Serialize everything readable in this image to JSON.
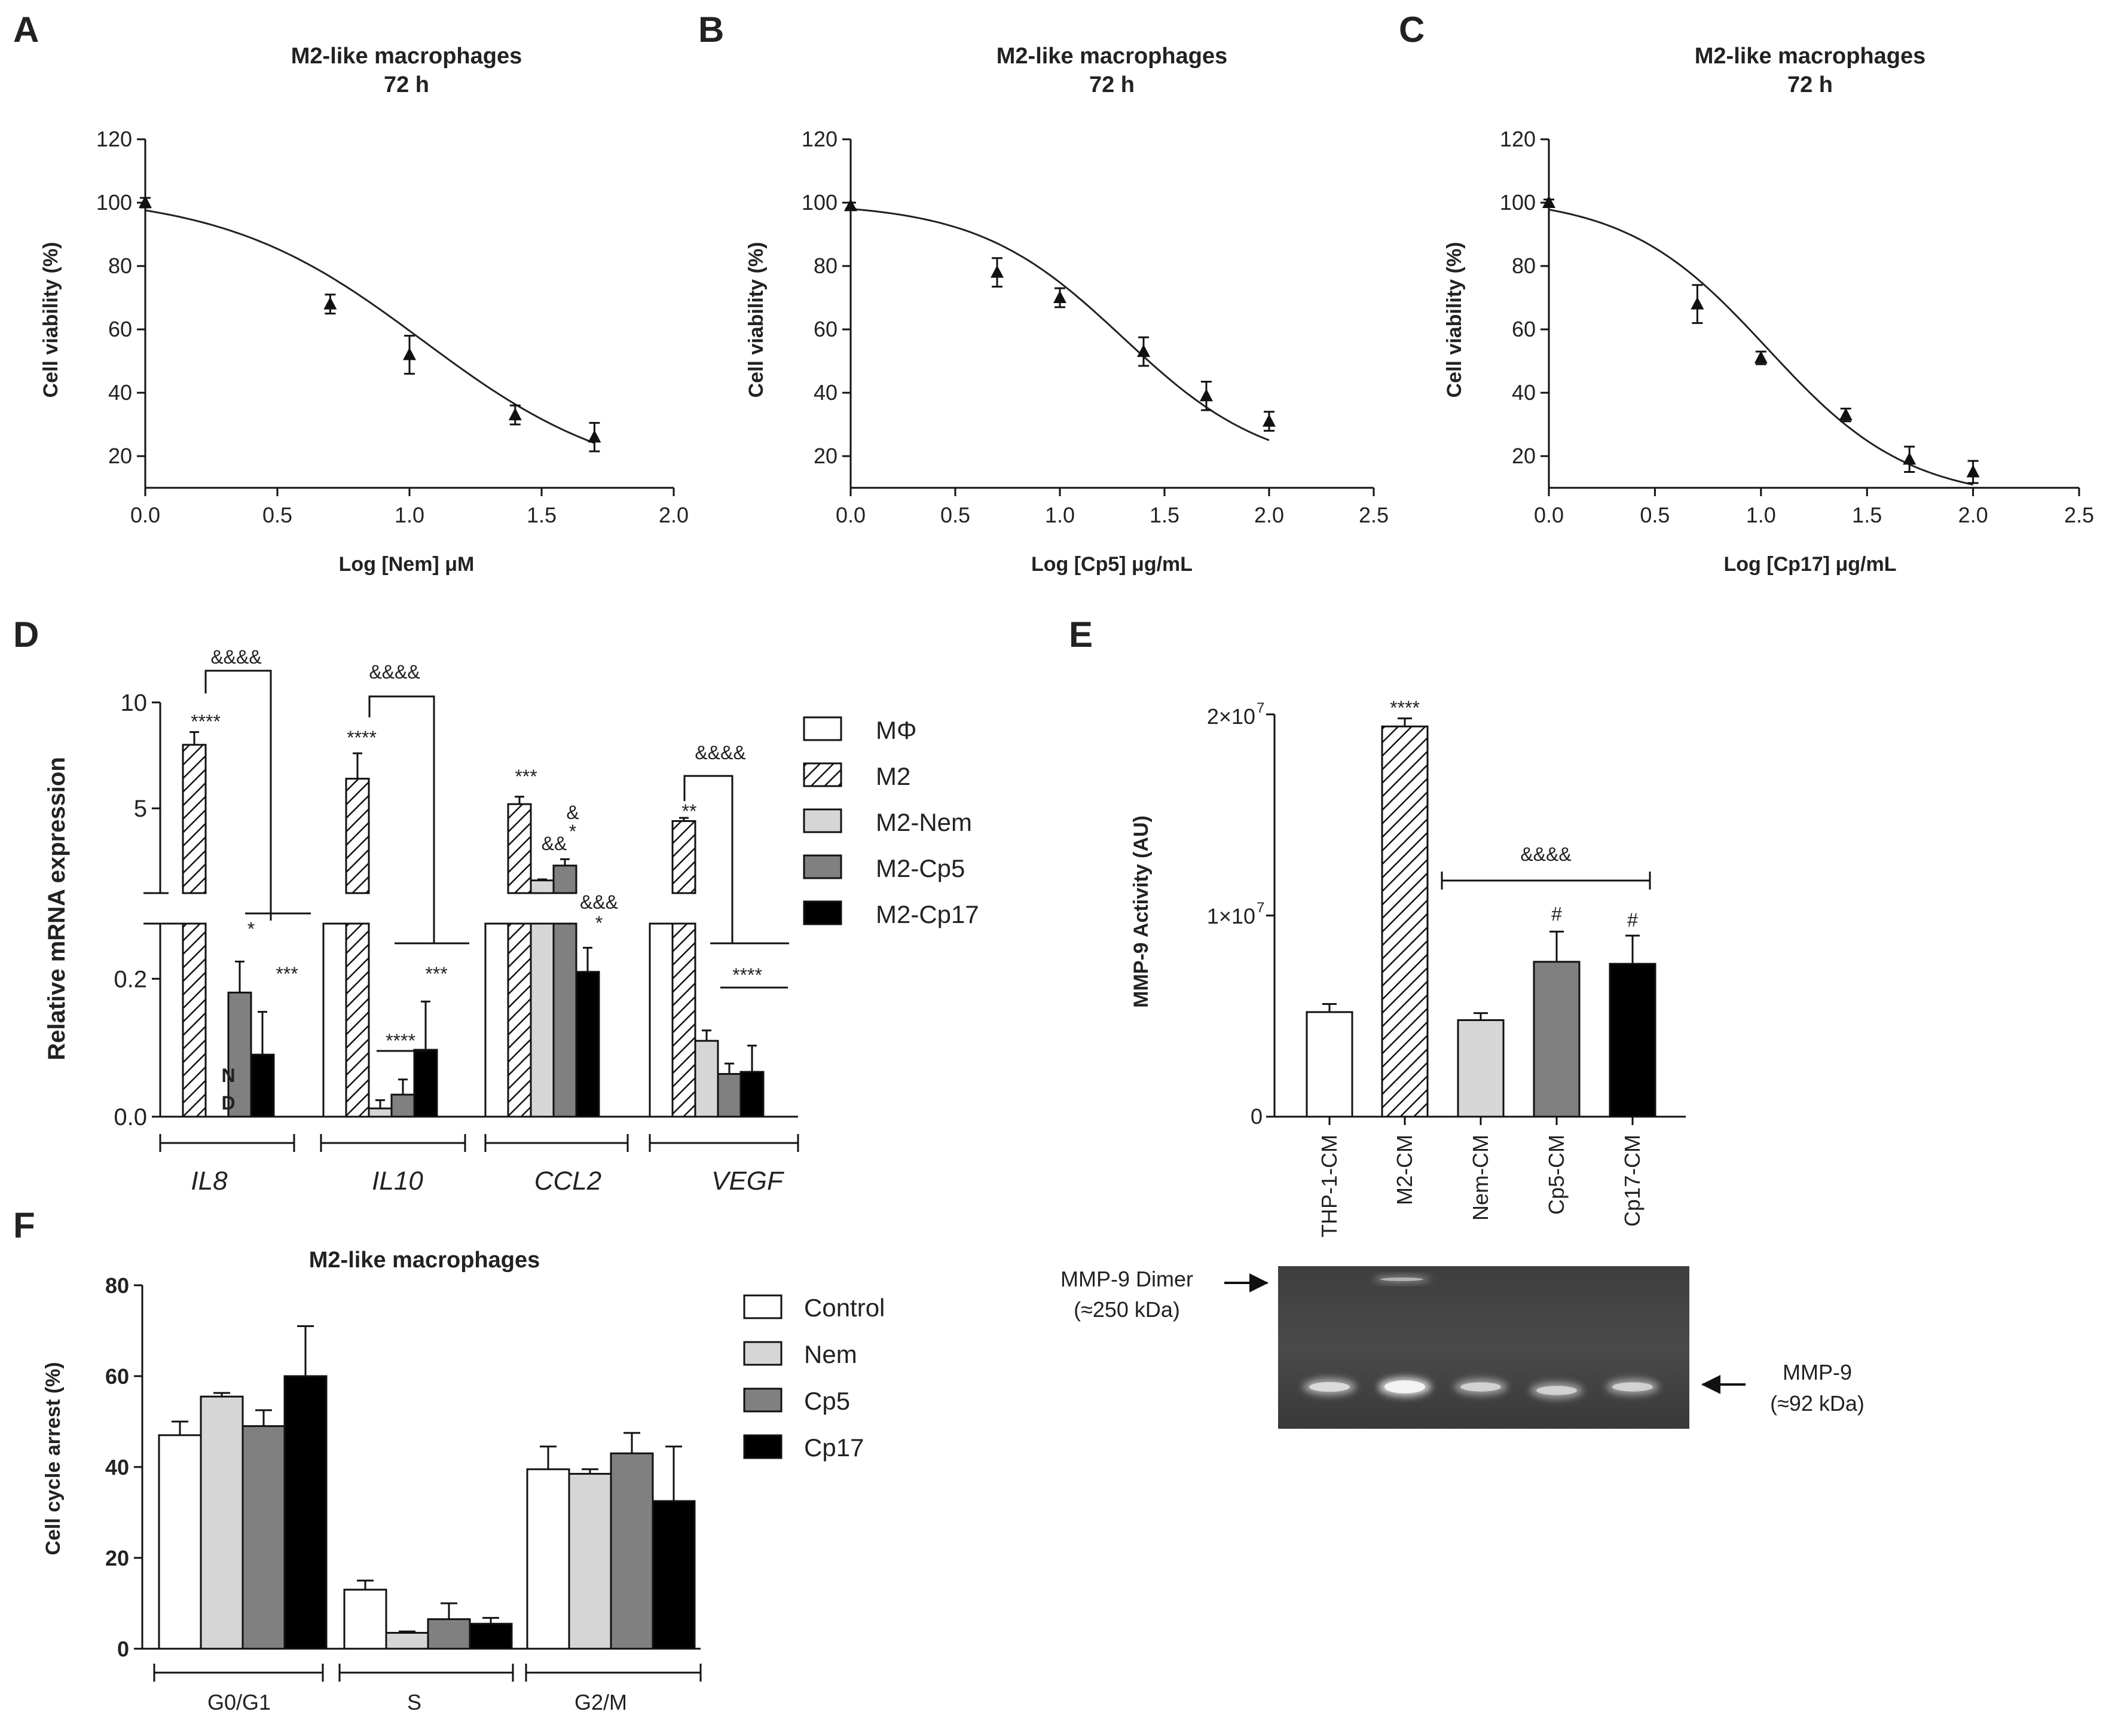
{
  "chart_data": [
    {
      "panel": "A",
      "type": "line",
      "title": "M2-like macrophages",
      "subtitle": "72 h",
      "xlabel": "Log [Nem] μM",
      "ylabel": "Cell viability (%)",
      "xlim": [
        0,
        2.0
      ],
      "ylim": [
        10,
        120
      ],
      "xticks": [
        "0.0",
        "0.5",
        "1.0",
        "1.5",
        "2.0"
      ],
      "yticks": [
        "20",
        "40",
        "60",
        "80",
        "100",
        "120"
      ],
      "x": [
        0.0,
        0.7,
        1.0,
        1.4,
        1.7
      ],
      "y": [
        100,
        68,
        52,
        33,
        26
      ],
      "err": [
        1.5,
        3,
        6,
        3,
        4.5
      ],
      "fit": {
        "top": 103,
        "bottom": 10,
        "logIC50": 1.05,
        "hill": 1.15
      }
    },
    {
      "panel": "B",
      "type": "line",
      "title": "M2-like macrophages",
      "subtitle": "72 h",
      "xlabel": "Log [Cp5] μg/mL",
      "ylabel": "Cell viability (%)",
      "xlim": [
        0,
        2.5
      ],
      "ylim": [
        10,
        120
      ],
      "xticks": [
        "0.0",
        "0.5",
        "1.0",
        "1.5",
        "2.0",
        "2.5"
      ],
      "yticks": [
        "20",
        "40",
        "60",
        "80",
        "100",
        "120"
      ],
      "x": [
        0.0,
        0.7,
        1.0,
        1.4,
        1.7,
        2.0
      ],
      "y": [
        99,
        78,
        70,
        53,
        39,
        31
      ],
      "err": [
        1,
        4.5,
        3,
        4.5,
        4.5,
        3
      ],
      "fit": {
        "top": 100,
        "bottom": 15,
        "logIC50": 1.3,
        "hill": 1.25
      }
    },
    {
      "panel": "C",
      "type": "line",
      "title": "M2-like macrophages",
      "subtitle": "72 h",
      "xlabel": "Log [Cp17] μg/mL",
      "ylabel": "Cell viability (%)",
      "xlim": [
        0,
        2.5
      ],
      "ylim": [
        10,
        120
      ],
      "xticks": [
        "0.0",
        "0.5",
        "1.0",
        "1.5",
        "2.0",
        "2.5"
      ],
      "yticks": [
        "20",
        "40",
        "60",
        "80",
        "100",
        "120"
      ],
      "x": [
        0.0,
        0.7,
        1.0,
        1.4,
        1.7,
        2.0
      ],
      "y": [
        100,
        68,
        51,
        33,
        19,
        15
      ],
      "err": [
        1,
        6,
        2,
        2,
        4,
        3.5
      ],
      "fit": {
        "top": 102,
        "bottom": 6,
        "logIC50": 1.03,
        "hill": 1.3
      }
    },
    {
      "panel": "D",
      "type": "bar",
      "ylabel": "Relative mRNA expression",
      "axis_segments": {
        "upper": {
          "range": [
            1,
            10
          ],
          "ticks": [
            "5",
            "10"
          ]
        },
        "lower": {
          "range": [
            0,
            0.28
          ],
          "ticks": [
            "0.0",
            "0.2"
          ]
        }
      },
      "categories": [
        "IL8",
        "IL10",
        "CCL2",
        "VEGF"
      ],
      "series": [
        {
          "name": "MΦ",
          "values": [
            1,
            1,
            1,
            1
          ]
        },
        {
          "name": "M2",
          "values": [
            8.0,
            6.4,
            5.2,
            4.4
          ],
          "errors": [
            0.6,
            1.2,
            0.35,
            0.15
          ]
        },
        {
          "name": "M2-Nem",
          "values": [
            null,
            0.012,
            1.6,
            0.11
          ],
          "errors": [
            0,
            0.012,
            0.05,
            0.015
          ]
        },
        {
          "name": "M2-Cp5",
          "values": [
            0.18,
            0.032,
            2.3,
            0.062
          ],
          "errors": [
            0.045,
            0.022,
            0.3,
            0.015
          ]
        },
        {
          "name": "M2-Cp17",
          "values": [
            0.09,
            0.097,
            0.21,
            0.065
          ],
          "errors": [
            0.062,
            0.07,
            0.035,
            0.038
          ]
        }
      ],
      "nd_label": [
        "N",
        "D"
      ],
      "annotations": {
        "il8_m2": "****",
        "il8_cp5": "*",
        "il8_cp17": "***",
        "il8_bracket": "&&&&",
        "il10_m2": "****",
        "il10_low": "****",
        "il10_cp17": "***",
        "il10_bracket": "&&&&",
        "ccl2_m2": "***",
        "ccl2_nem": "&&",
        "ccl2_cp5_a": "&",
        "ccl2_cp5_b": "*",
        "ccl2_cp17_a": "&&&",
        "ccl2_cp17_b": "*",
        "vegf_m2": "**",
        "vegf_low": "****",
        "vegf_bracket": "&&&&"
      }
    },
    {
      "panel": "E",
      "type": "bar",
      "ylabel": "MMP-9 Activity (AU)",
      "ylim": [
        0,
        20000000
      ],
      "ytick_labels": {
        "zero": "0",
        "one": "1×10",
        "two": "2×10",
        "exp": "7"
      },
      "categories": [
        "THP-1-CM",
        "M2-CM",
        "Nem-CM",
        "Cp5-CM",
        "Cp17-CM"
      ],
      "values": [
        5200000,
        19400000,
        4800000,
        7700000,
        7600000
      ],
      "errors": [
        400000,
        400000,
        350000,
        1500000,
        1400000
      ],
      "colors": [
        "#ffffff",
        "hatch",
        "#d6d6d6",
        "#808080",
        "#000000"
      ],
      "annotations": {
        "m2": "****",
        "cp5": "#",
        "cp17": "#",
        "bracket": "&&&&"
      }
    },
    {
      "panel": "F",
      "type": "bar",
      "title": "M2-like macrophages",
      "ylabel": "Cell cycle arrest (%)",
      "ylim": [
        0,
        80
      ],
      "yticks": [
        "0",
        "20",
        "40",
        "60",
        "80"
      ],
      "categories": [
        "G0/G1",
        "S",
        "G2/M"
      ],
      "series": [
        {
          "name": "Control",
          "values": [
            47,
            13,
            39.5
          ],
          "errors": [
            3,
            2,
            5
          ]
        },
        {
          "name": "Nem",
          "values": [
            55.5,
            3.5,
            38.5
          ],
          "errors": [
            0.8,
            0.3,
            1
          ]
        },
        {
          "name": "Cp5",
          "values": [
            49,
            6.5,
            43
          ],
          "errors": [
            3.5,
            3.5,
            4.5
          ]
        },
        {
          "name": "Cp17",
          "values": [
            60,
            5.5,
            32.5
          ],
          "errors": [
            11,
            1.3,
            12
          ]
        }
      ]
    }
  ],
  "panels": {
    "a": "A",
    "b": "B",
    "c": "C",
    "d": "D",
    "e": "E",
    "f": "F"
  },
  "colors": {
    "mphi": "#ffffff",
    "nem": "#d6d6d6",
    "cp5": "#808080",
    "cp17": "#000000",
    "ink": "#111111"
  },
  "gel": {
    "dimer_label": "MMP-9 Dimer",
    "dimer_kda": "(≈250 kDa)",
    "mono_label": "MMP-9",
    "mono_kda": "(≈92 kDa)",
    "band_intensity": [
      0.55,
      1.0,
      0.45,
      0.45,
      0.45
    ]
  }
}
